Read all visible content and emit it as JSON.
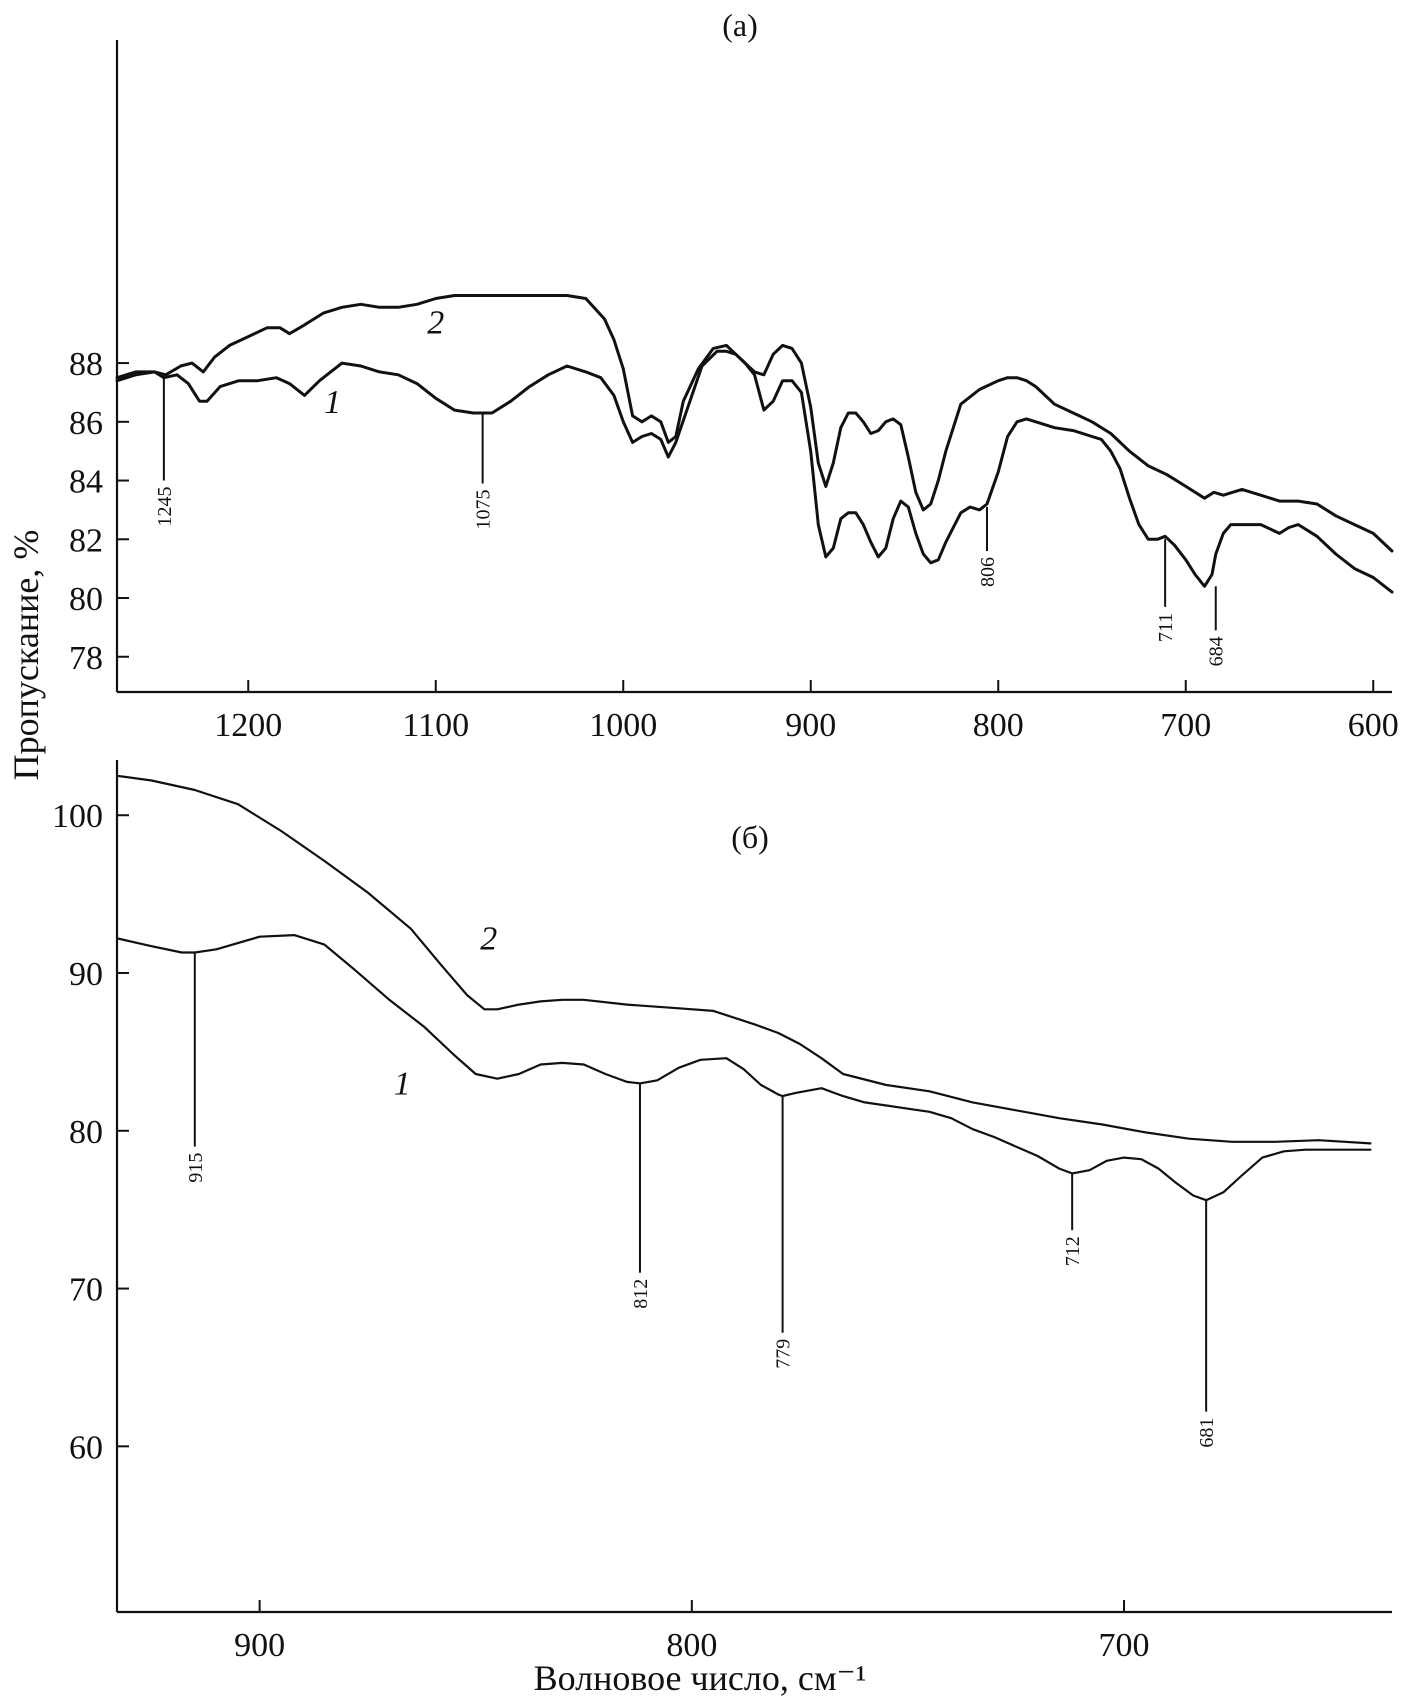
{
  "ylabel": "Пропускание, %",
  "xlabel": "Волновое число, см⁻¹",
  "chart_data": [
    {
      "type": "line",
      "title": "(а)",
      "x_reversed": true,
      "xlim": [
        1270,
        590
      ],
      "ylim": [
        76.8,
        99
      ],
      "xticks": [
        1200,
        1100,
        1000,
        900,
        800,
        700,
        600
      ],
      "yticks": [
        78,
        80,
        82,
        84,
        86,
        88
      ],
      "series": [
        {
          "name": "1",
          "label": "1",
          "label_at": [
            1155,
            86.3
          ],
          "x": [
            1270,
            1260,
            1250,
            1245,
            1238,
            1232,
            1226,
            1222,
            1215,
            1205,
            1195,
            1185,
            1178,
            1170,
            1162,
            1150,
            1140,
            1130,
            1120,
            1110,
            1100,
            1090,
            1080,
            1070,
            1060,
            1050,
            1040,
            1030,
            1020,
            1012,
            1005,
            1000,
            995,
            990,
            985,
            980,
            976,
            972,
            965,
            958,
            950,
            945,
            940,
            935,
            930,
            925,
            920,
            915,
            910,
            905,
            900,
            896,
            892,
            888,
            884,
            880,
            876,
            872,
            868,
            864,
            860,
            856,
            852,
            848,
            844,
            840,
            836,
            832,
            828,
            820,
            815,
            810,
            806,
            800,
            795,
            790,
            785,
            780,
            770,
            760,
            750,
            745,
            740,
            735,
            730,
            725,
            720,
            715,
            711,
            706,
            700,
            695,
            690,
            686,
            684,
            680,
            676,
            672,
            668,
            660,
            650,
            645,
            640,
            630,
            620,
            610,
            600,
            590
          ],
          "y": [
            87.4,
            87.6,
            87.7,
            87.5,
            87.6,
            87.3,
            86.7,
            86.7,
            87.2,
            87.4,
            87.4,
            87.5,
            87.3,
            86.9,
            87.4,
            88.0,
            87.9,
            87.7,
            87.6,
            87.3,
            86.8,
            86.4,
            86.3,
            86.3,
            86.7,
            87.2,
            87.6,
            87.9,
            87.7,
            87.5,
            86.9,
            86.0,
            85.3,
            85.5,
            85.6,
            85.4,
            84.8,
            85.3,
            86.6,
            87.9,
            88.4,
            88.4,
            88.3,
            88.0,
            87.6,
            86.4,
            86.7,
            87.4,
            87.4,
            87.0,
            85.0,
            82.5,
            81.4,
            81.7,
            82.7,
            82.9,
            82.9,
            82.5,
            81.9,
            81.4,
            81.7,
            82.7,
            83.3,
            83.1,
            82.2,
            81.5,
            81.2,
            81.3,
            81.9,
            82.9,
            83.1,
            83.0,
            83.2,
            84.3,
            85.5,
            86.0,
            86.1,
            86.0,
            85.8,
            85.7,
            85.5,
            85.4,
            85.0,
            84.4,
            83.4,
            82.5,
            82.0,
            82.0,
            82.1,
            81.8,
            81.3,
            80.8,
            80.4,
            80.8,
            81.5,
            82.2,
            82.5,
            82.5,
            82.5,
            82.5,
            82.2,
            82.4,
            82.5,
            82.1,
            81.5,
            81.0,
            80.7,
            80.2
          ]
        },
        {
          "name": "2",
          "label": "2",
          "label_at": [
            1100,
            89.0
          ],
          "x": [
            1270,
            1260,
            1250,
            1244,
            1236,
            1230,
            1224,
            1218,
            1210,
            1200,
            1190,
            1183,
            1178,
            1170,
            1160,
            1150,
            1140,
            1130,
            1120,
            1110,
            1100,
            1090,
            1080,
            1070,
            1060,
            1050,
            1040,
            1030,
            1020,
            1010,
            1005,
            1000,
            995,
            990,
            985,
            980,
            976,
            972,
            968,
            960,
            952,
            945,
            940,
            935,
            930,
            925,
            920,
            915,
            910,
            905,
            900,
            896,
            892,
            888,
            884,
            880,
            876,
            872,
            868,
            864,
            860,
            856,
            852,
            848,
            844,
            840,
            836,
            832,
            828,
            820,
            810,
            800,
            795,
            790,
            785,
            780,
            770,
            760,
            750,
            740,
            730,
            720,
            710,
            700,
            690,
            685,
            680,
            675,
            670,
            660,
            650,
            640,
            630,
            620,
            610,
            600,
            590
          ],
          "y": [
            87.5,
            87.7,
            87.7,
            87.6,
            87.9,
            88.0,
            87.7,
            88.2,
            88.6,
            88.9,
            89.2,
            89.2,
            89.0,
            89.3,
            89.7,
            89.9,
            90.0,
            89.9,
            89.9,
            90.0,
            90.2,
            90.3,
            90.3,
            90.3,
            90.3,
            90.3,
            90.3,
            90.3,
            90.2,
            89.5,
            88.8,
            87.8,
            86.2,
            86.0,
            86.2,
            86.0,
            85.3,
            85.5,
            86.7,
            87.8,
            88.5,
            88.6,
            88.3,
            88.0,
            87.7,
            87.6,
            88.3,
            88.6,
            88.5,
            88.0,
            86.5,
            84.6,
            83.8,
            84.6,
            85.8,
            86.3,
            86.3,
            86.0,
            85.6,
            85.7,
            86.0,
            86.1,
            85.9,
            84.8,
            83.6,
            83.0,
            83.2,
            84.0,
            85.0,
            86.6,
            87.1,
            87.4,
            87.5,
            87.5,
            87.4,
            87.2,
            86.6,
            86.3,
            86.0,
            85.6,
            85.0,
            84.5,
            84.2,
            83.8,
            83.4,
            83.6,
            83.5,
            83.6,
            83.7,
            83.5,
            83.3,
            83.3,
            83.2,
            82.8,
            82.5,
            82.2,
            81.6
          ]
        }
      ],
      "peaks": [
        {
          "label": "1245",
          "x": 1245,
          "y_from": 87.5,
          "y_to": 84.0
        },
        {
          "label": "1075",
          "x": 1075,
          "y_from": 86.3,
          "y_to": 83.9
        },
        {
          "label": "806",
          "x": 806,
          "y_from": 83.1,
          "y_to": 81.6
        },
        {
          "label": "711",
          "x": 711,
          "y_from": 82.0,
          "y_to": 79.7
        },
        {
          "label": "684",
          "x": 684,
          "y_from": 80.4,
          "y_to": 78.9
        }
      ]
    },
    {
      "type": "line",
      "title": "(б)",
      "x_reversed": true,
      "xlim": [
        933,
        638
      ],
      "ylim": [
        49.5,
        103.5
      ],
      "xticks": [
        900,
        800,
        700
      ],
      "yticks": [
        60,
        70,
        80,
        90,
        100
      ],
      "series": [
        {
          "name": "1",
          "label": "1",
          "label_at": [
            867,
            82.3
          ],
          "x": [
            933,
            925,
            918,
            915,
            910,
            900,
            892,
            885,
            878,
            870,
            862,
            855,
            850,
            845,
            840,
            835,
            830,
            825,
            820,
            815,
            812,
            808,
            803,
            798,
            792,
            788,
            784,
            780,
            779,
            776,
            770,
            765,
            760,
            755,
            750,
            745,
            740,
            735,
            730,
            725,
            720,
            715,
            712,
            708,
            704,
            700,
            696,
            692,
            688,
            684,
            681,
            677,
            673,
            668,
            663,
            658,
            650,
            643
          ],
          "y": [
            92.2,
            91.7,
            91.3,
            91.3,
            91.5,
            92.3,
            92.4,
            91.8,
            90.2,
            88.3,
            86.6,
            84.8,
            83.6,
            83.3,
            83.6,
            84.2,
            84.3,
            84.2,
            83.6,
            83.1,
            83.0,
            83.2,
            84.0,
            84.5,
            84.6,
            83.9,
            82.9,
            82.3,
            82.2,
            82.4,
            82.7,
            82.2,
            81.8,
            81.6,
            81.4,
            81.2,
            80.8,
            80.1,
            79.6,
            79.0,
            78.4,
            77.6,
            77.3,
            77.5,
            78.1,
            78.3,
            78.2,
            77.6,
            76.7,
            75.9,
            75.6,
            76.1,
            77.1,
            78.3,
            78.7,
            78.8,
            78.8,
            78.8
          ]
        },
        {
          "name": "2",
          "label": "2",
          "label_at": [
            847,
            91.5
          ],
          "x": [
            933,
            925,
            915,
            905,
            895,
            885,
            875,
            865,
            858,
            852,
            848,
            845,
            840,
            835,
            830,
            825,
            815,
            805,
            795,
            785,
            780,
            775,
            770,
            765,
            755,
            745,
            735,
            725,
            715,
            705,
            695,
            685,
            675,
            665,
            655,
            643
          ],
          "y": [
            102.5,
            102.2,
            101.6,
            100.7,
            99.0,
            97.1,
            95.1,
            92.8,
            90.5,
            88.6,
            87.7,
            87.7,
            88.0,
            88.2,
            88.3,
            88.3,
            88.0,
            87.8,
            87.6,
            86.7,
            86.2,
            85.5,
            84.6,
            83.6,
            82.9,
            82.5,
            81.8,
            81.3,
            80.8,
            80.4,
            79.9,
            79.5,
            79.3,
            79.3,
            79.4,
            79.2
          ]
        }
      ],
      "peaks": [
        {
          "label": "915",
          "x": 915,
          "y_from": 91.3,
          "y_to": 79.0
        },
        {
          "label": "812",
          "x": 812,
          "y_from": 83.0,
          "y_to": 71.0
        },
        {
          "label": "779",
          "x": 779,
          "y_from": 82.2,
          "y_to": 67.2
        },
        {
          "label": "712",
          "x": 712,
          "y_from": 77.3,
          "y_to": 73.7
        },
        {
          "label": "681",
          "x": 681,
          "y_from": 75.6,
          "y_to": 62.2
        }
      ]
    }
  ]
}
